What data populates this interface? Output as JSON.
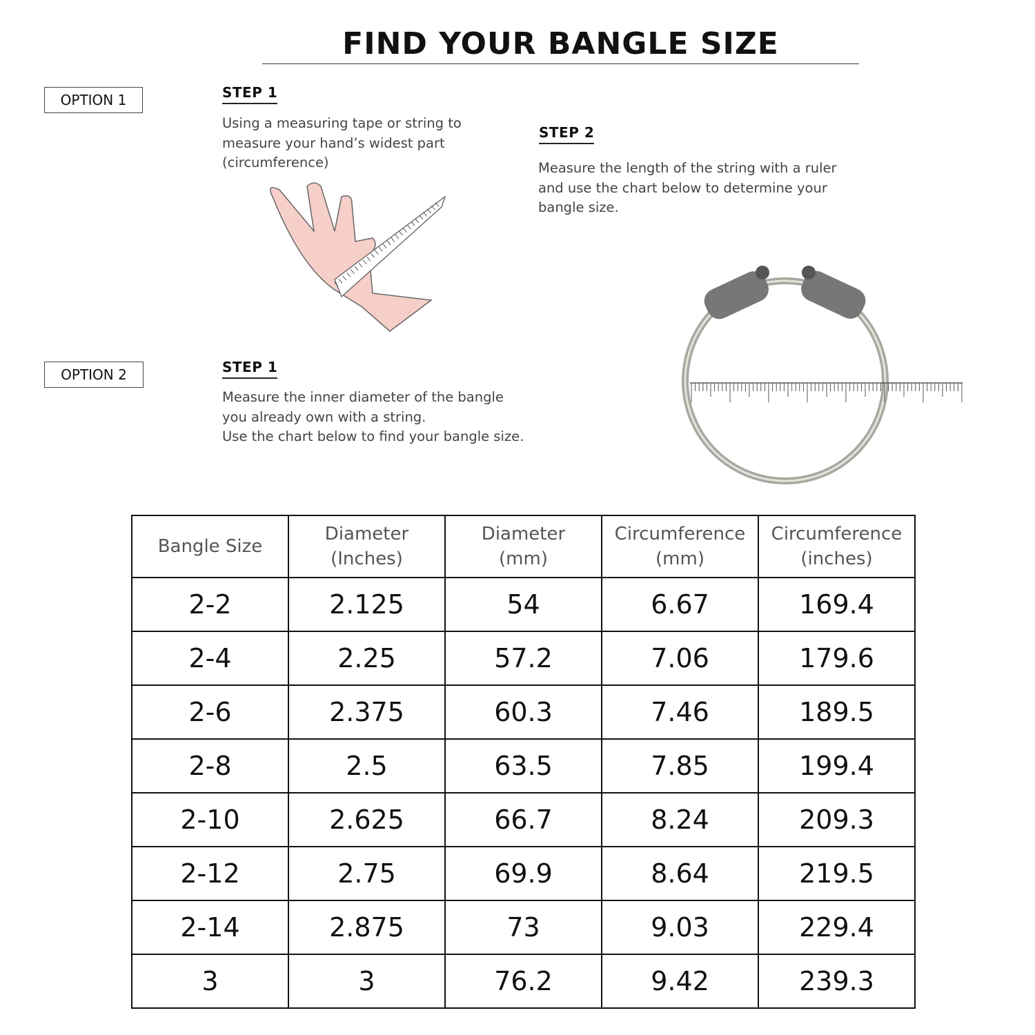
{
  "title": "FIND YOUR BANGLE SIZE",
  "option1": {
    "label": "OPTION 1",
    "step1": {
      "heading": "STEP 1",
      "text": "Using a measuring tape or string to measure your hand’s widest part (circumference)"
    },
    "step2": {
      "heading": "STEP 2",
      "text": "Measure the length of the string with a ruler and use the chart below to determine your bangle size."
    }
  },
  "option2": {
    "label": "OPTION 2",
    "step1": {
      "heading": "STEP 1",
      "text_line1": "Measure the inner diameter of the bangle you already own with a string.",
      "text_line2": "Use the chart below to find your bangle size."
    }
  },
  "table": {
    "headers": [
      [
        "Bangle Size",
        ""
      ],
      [
        "Diameter",
        "(Inches)"
      ],
      [
        "Diameter",
        "(mm)"
      ],
      [
        "Circumference",
        "(mm)"
      ],
      [
        "Circumference",
        "(inches)"
      ]
    ],
    "rows": [
      [
        "2-2",
        "2.125",
        "54",
        "6.67",
        "169.4"
      ],
      [
        "2-4",
        "2.25",
        "57.2",
        "7.06",
        "179.6"
      ],
      [
        "2-6",
        "2.375",
        "60.3",
        "7.46",
        "189.5"
      ],
      [
        "2-8",
        "2.5",
        "63.5",
        "7.85",
        "199.4"
      ],
      [
        "2-10",
        "2.625",
        "66.7",
        "8.24",
        "209.3"
      ],
      [
        "2-12",
        "2.75",
        "69.9",
        "8.64",
        "219.5"
      ],
      [
        "2-14",
        "2.875",
        "73",
        "9.03",
        "229.4"
      ],
      [
        "3",
        "3",
        "76.2",
        "9.42",
        "239.3"
      ]
    ]
  },
  "images": {
    "hand": "hand-measuring-tape-illustration",
    "bangle": "silver-elephant-bangle-with-ruler"
  },
  "colors": {
    "skin": "#f6cfc8",
    "silver": "#b8b8b0"
  }
}
